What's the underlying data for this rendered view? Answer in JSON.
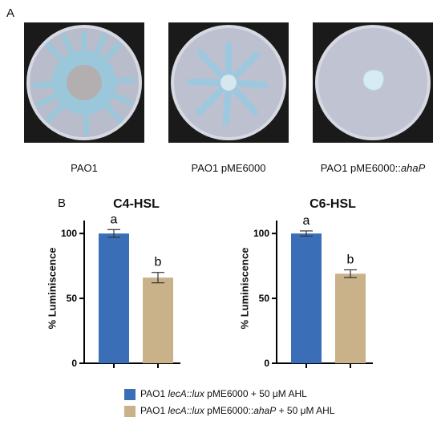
{
  "panel_a_label": "A",
  "panel_b_label": "B",
  "dishes": [
    {
      "label": "PAO1",
      "colony": "swarm-large"
    },
    {
      "label": "PAO1 pME6000",
      "colony": "swarm-medium"
    },
    {
      "label": "PAO1 pME6000::ahaP",
      "label_plain": "PAO1 pME6000::",
      "label_italic": "ahaP",
      "colony": "point"
    }
  ],
  "colors": {
    "blue_bar": "#3a6fb8",
    "tan_bar": "#c9b18a",
    "agar": "#bfc3d4",
    "colony": "#9fd2e6"
  },
  "legend": [
    {
      "pre": "PAO1 ",
      "italic": "lecA::lux",
      "post": " pME6000 + 50 μM AHL",
      "color": "#3a6fb8"
    },
    {
      "pre": "PAO1 ",
      "italic": "lecA::lux",
      "post": " pME6000::",
      "italic2": "ahaP",
      "post2": " + 50 μM AHL",
      "color": "#c9b18a"
    }
  ],
  "chart_data": [
    {
      "type": "bar",
      "title": "C4-HSL",
      "ylabel": "% Luminiscence",
      "ylim": [
        0,
        110
      ],
      "yticks": [
        0,
        50,
        100
      ],
      "categories": [
        "PAO1 lecA::lux pME6000 + 50 μM AHL",
        "PAO1 lecA::lux pME6000::ahaP + 50 μM AHL"
      ],
      "values": [
        100,
        66
      ],
      "errors": [
        3,
        4
      ],
      "significance": [
        "a",
        "b"
      ]
    },
    {
      "type": "bar",
      "title": "C6-HSL",
      "ylabel": "% Luminiscence",
      "ylim": [
        0,
        110
      ],
      "yticks": [
        0,
        50,
        100
      ],
      "categories": [
        "PAO1 lecA::lux pME6000 + 50 μM AHL",
        "PAO1 lecA::lux pME6000::ahaP + 50 μM AHL"
      ],
      "values": [
        100,
        69
      ],
      "errors": [
        2,
        3
      ],
      "significance": [
        "a",
        "b"
      ]
    }
  ]
}
